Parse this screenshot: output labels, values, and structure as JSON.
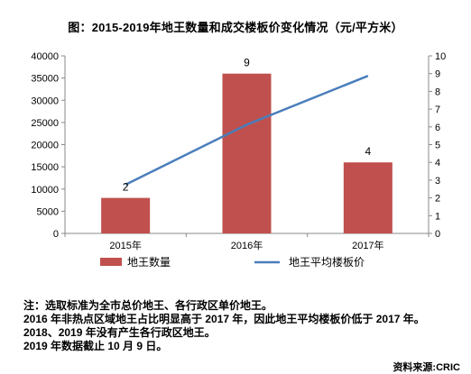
{
  "title": "图：2015-2019年地王数量和成交楼板价变化情况（元/平方米）",
  "chart_data": {
    "type": "bar+line",
    "categories": [
      "2015年",
      "2016年",
      "2017年"
    ],
    "series": [
      {
        "name": "地王数量",
        "type": "bar",
        "axis": "right",
        "values": [
          2,
          9,
          4
        ],
        "color": "#c0504d"
      },
      {
        "name": "地王平均楼板价",
        "type": "line",
        "axis": "left",
        "values": [
          11000,
          24500,
          35500
        ],
        "color": "#4a7ebb"
      }
    ],
    "y_left": {
      "min": 0,
      "max": 40000,
      "step": 5000,
      "ticks": [
        "0",
        "5000",
        "10000",
        "15000",
        "20000",
        "25000",
        "30000",
        "35000",
        "40000"
      ]
    },
    "y_right": {
      "min": 0,
      "max": 10,
      "step": 1,
      "ticks": [
        "0",
        "1",
        "2",
        "3",
        "4",
        "5",
        "6",
        "7",
        "8",
        "9",
        "10"
      ]
    },
    "data_labels": [
      "2",
      "9",
      "4"
    ],
    "grid": false,
    "legend": "bottom"
  },
  "notes": [
    "注：选取标准为全市总价地王、各行政区单价地王。",
    "2016 年非热点区域地王占比明显高于 2017 年，因此地王平均楼板价低于 2017 年。",
    "2018、2019 年没有产生各行政区地王。",
    "2019 年数据截止 10 月 9 日。"
  ],
  "source": "资料来源:CRIC"
}
